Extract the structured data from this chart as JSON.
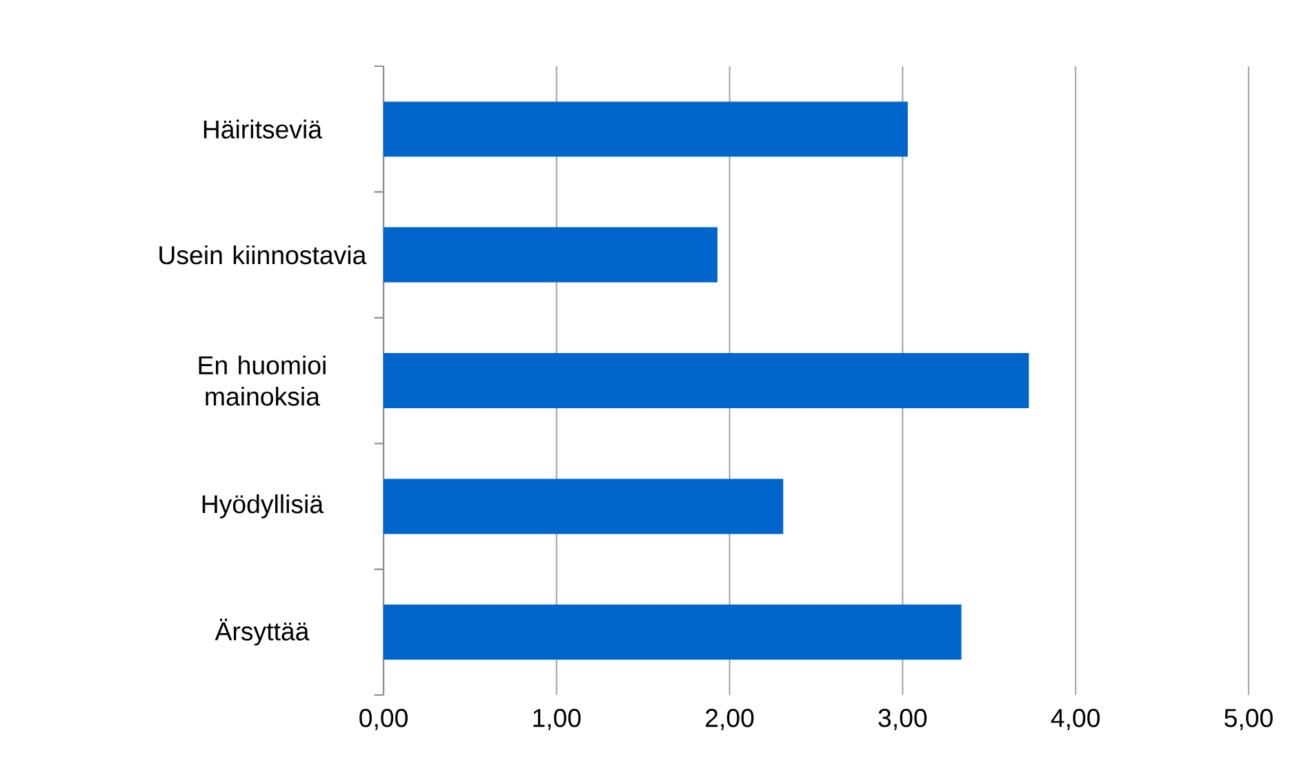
{
  "chart_data": {
    "type": "bar",
    "orientation": "horizontal",
    "categories": [
      "Häiritseviä",
      "Usein kiinnostavia",
      "En huomioi mainoksia",
      "Hyödyllisiä",
      "Ärsyttää"
    ],
    "values": [
      3.03,
      1.93,
      3.73,
      2.31,
      3.34
    ],
    "color": "#0066cc",
    "xlim": [
      0,
      5
    ],
    "xticks": [
      {
        "value": 0,
        "label": "0,00"
      },
      {
        "value": 1,
        "label": "1,00"
      },
      {
        "value": 2,
        "label": "2,00"
      },
      {
        "value": 3,
        "label": "3,00"
      },
      {
        "value": 4,
        "label": "4,00"
      },
      {
        "value": 5,
        "label": "5,00"
      }
    ],
    "grid": "x"
  }
}
